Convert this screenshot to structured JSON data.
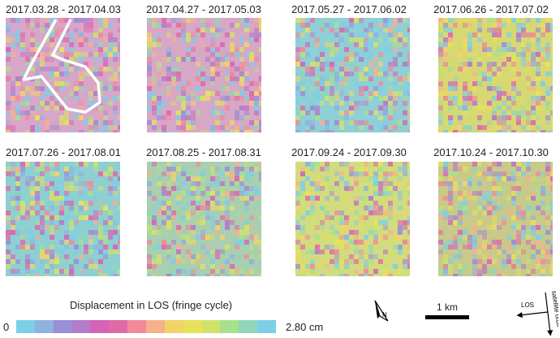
{
  "panels": [
    {
      "date_range": "2017.03.28 - 2017.04.03",
      "base_color": "#d8a6c8"
    },
    {
      "date_range": "2017.04.27 - 2017.05.03",
      "base_color": "#d7a7c6"
    },
    {
      "date_range": "2017.05.27 - 2017.06.02",
      "base_color": "#8fcfd6"
    },
    {
      "date_range": "2017.06.26 - 2017.07.02",
      "base_color": "#d8d873"
    },
    {
      "date_range": "2017.07.26 - 2017.08.01",
      "base_color": "#8ecfd2"
    },
    {
      "date_range": "2017.08.25 - 2017.08.31",
      "base_color": "#a9cfb0"
    },
    {
      "date_range": "2017.09.24 - 2017.09.30",
      "base_color": "#d2dc7e"
    },
    {
      "date_range": "2017.10.24 - 2017.10.30",
      "base_color": "#c9c98a"
    }
  ],
  "colorbar": {
    "title": "Displacement in LOS (fringe cycle)",
    "min_label": "0",
    "max_label": "2.80 cm",
    "colors": [
      "#7ccfe6",
      "#8fb2e0",
      "#9a8fd6",
      "#b27ccb",
      "#d464b8",
      "#e06aa6",
      "#f08a9a",
      "#f6b08c",
      "#f2d36a",
      "#e6e25a",
      "#cfe36a",
      "#a9e08c",
      "#8fd7b8",
      "#7ccfe6"
    ]
  },
  "north_arrow": {
    "label": "N",
    "icon": "north-arrow-icon"
  },
  "scale_bar": {
    "label": "1 km"
  },
  "orbit_diagram": {
    "los_label": "LOS",
    "orbit_label": "satellite orbit"
  }
}
